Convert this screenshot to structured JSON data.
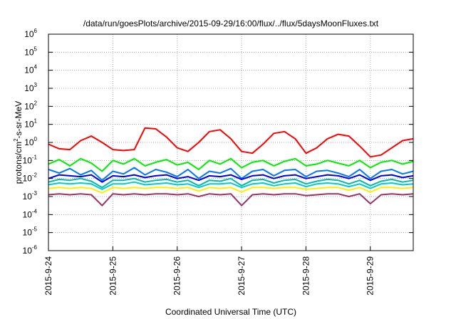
{
  "chart_data": {
    "type": "line",
    "title": "/data/run/goesPlots/archive/2015-09-29/16:00/flux/../flux/5daysMoonFluxes.txt",
    "xlabel": "Coordinated Universal Time (UTC)",
    "ylabel": "protons/cm2-s-sr-MeV",
    "ylabel_parts": {
      "pre": "protons/cm",
      "sup": "2",
      "post": "-s-sr-MeV"
    },
    "yscale": "log",
    "ylim": [
      1e-06,
      1000000.0
    ],
    "xlim_days_since_2015-9-24": [
      0,
      5.667
    ],
    "grid": true,
    "x_ticks": [
      {
        "value": 0,
        "label": "2015-9-24"
      },
      {
        "value": 1,
        "label": "2015-9-25"
      },
      {
        "value": 2,
        "label": "2015-9-26"
      },
      {
        "value": 3,
        "label": "2015-9-27"
      },
      {
        "value": 4,
        "label": "2015-9-28"
      },
      {
        "value": 5,
        "label": "2015-9-29"
      }
    ],
    "y_ticks": [
      {
        "exp": 6,
        "base": "10",
        "sup": "6"
      },
      {
        "exp": 5,
        "base": "10",
        "sup": "5"
      },
      {
        "exp": 4,
        "base": "10",
        "sup": "4"
      },
      {
        "exp": 3,
        "base": "10",
        "sup": "3"
      },
      {
        "exp": 2,
        "base": "10",
        "sup": "2"
      },
      {
        "exp": 1,
        "base": "10",
        "sup": "1"
      },
      {
        "exp": 0,
        "base": "10",
        "sup": "0"
      },
      {
        "exp": -1,
        "base": "10",
        "sup": "-1"
      },
      {
        "exp": -2,
        "base": "10",
        "sup": "-2"
      },
      {
        "exp": -3,
        "base": "10",
        "sup": "-3"
      },
      {
        "exp": -4,
        "base": "10",
        "sup": "-4"
      },
      {
        "exp": -5,
        "base": "10",
        "sup": "-5"
      },
      {
        "exp": -6,
        "base": "10",
        "sup": "-6"
      }
    ],
    "x_step_days": 0.1667,
    "series_log10": [
      {
        "color": "#ff0000",
        "values": [
          -0.1,
          -0.35,
          -0.4,
          0.1,
          0.35,
          0.0,
          -0.4,
          -0.45,
          -0.4,
          0.8,
          0.75,
          0.3,
          -0.3,
          -0.5,
          0.0,
          0.6,
          0.7,
          0.2,
          -0.5,
          -0.6,
          -0.1,
          0.5,
          0.6,
          0.2,
          -0.6,
          -0.3,
          0.2,
          0.45,
          0.35,
          -0.2,
          -0.8,
          -0.7,
          -0.3,
          0.1,
          0.2
        ]
      },
      {
        "color": "#00ee00",
        "values": [
          -1.2,
          -0.95,
          -1.3,
          -0.9,
          -1.15,
          -1.6,
          -1.0,
          -1.2,
          -0.9,
          -1.3,
          -1.1,
          -0.95,
          -1.25,
          -1.1,
          -1.5,
          -1.0,
          -1.2,
          -0.9,
          -1.4,
          -1.1,
          -1.0,
          -1.3,
          -1.05,
          -0.9,
          -1.3,
          -1.2,
          -1.0,
          -1.15,
          -1.3,
          -1.0,
          -1.4,
          -1.1,
          -1.0,
          -1.2,
          -1.05
        ]
      },
      {
        "color": "#0077ff",
        "values": [
          -1.5,
          -1.7,
          -1.45,
          -1.8,
          -1.55,
          -2.1,
          -1.6,
          -1.75,
          -1.4,
          -1.8,
          -1.5,
          -1.65,
          -1.9,
          -1.5,
          -2.0,
          -1.6,
          -1.7,
          -1.45,
          -2.0,
          -1.6,
          -1.5,
          -1.85,
          -1.55,
          -1.5,
          -1.9,
          -1.6,
          -1.55,
          -1.7,
          -1.9,
          -1.5,
          -2.0,
          -1.6,
          -1.5,
          -1.75,
          -1.6
        ]
      },
      {
        "color": "#0000ee",
        "values": [
          -2.0,
          -1.8,
          -1.85,
          -1.9,
          -1.8,
          -2.2,
          -1.85,
          -1.9,
          -1.8,
          -1.95,
          -1.85,
          -1.8,
          -2.0,
          -1.9,
          -2.1,
          -1.85,
          -1.9,
          -1.8,
          -2.05,
          -1.85,
          -1.8,
          -2.0,
          -1.85,
          -1.8,
          -2.0,
          -1.9,
          -1.8,
          -1.85,
          -2.0,
          -1.8,
          -2.1,
          -1.85,
          -1.8,
          -1.95,
          -1.85
        ]
      },
      {
        "color": "#00bbaa",
        "values": [
          -2.2,
          -2.05,
          -2.1,
          -2.0,
          -2.15,
          -2.5,
          -2.1,
          -2.1,
          -2.0,
          -2.2,
          -2.1,
          -2.05,
          -2.2,
          -2.1,
          -2.4,
          -2.1,
          -2.15,
          -2.0,
          -2.4,
          -2.1,
          -2.05,
          -2.25,
          -2.1,
          -2.05,
          -2.3,
          -2.15,
          -2.05,
          -2.1,
          -2.3,
          -2.1,
          -2.4,
          -2.15,
          -2.05,
          -2.2,
          -2.1
        ]
      },
      {
        "color": "#00cccc",
        "values": [
          -2.35,
          -2.25,
          -2.3,
          -2.25,
          -2.3,
          -2.6,
          -2.3,
          -2.3,
          -2.2,
          -2.35,
          -2.3,
          -2.25,
          -2.35,
          -2.3,
          -2.5,
          -2.3,
          -2.3,
          -2.25,
          -2.5,
          -2.3,
          -2.25,
          -2.4,
          -2.3,
          -2.25,
          -2.45,
          -2.3,
          -2.25,
          -2.3,
          -2.45,
          -2.3,
          -2.55,
          -2.3,
          -2.25,
          -2.35,
          -2.3
        ]
      },
      {
        "color": "#ffee00",
        "values": [
          -2.55,
          -2.5,
          -2.55,
          -2.5,
          -2.55,
          -2.8,
          -2.5,
          -2.55,
          -2.5,
          -2.55,
          -2.5,
          -2.5,
          -2.55,
          -2.5,
          -2.7,
          -2.5,
          -2.55,
          -2.5,
          -2.75,
          -2.5,
          -2.5,
          -2.55,
          -2.5,
          -2.5,
          -2.6,
          -2.55,
          -2.5,
          -2.5,
          -2.65,
          -2.5,
          -2.75,
          -2.5,
          -2.5,
          -2.55,
          -2.5
        ]
      },
      {
        "color": "#993366",
        "values": [
          -2.9,
          -2.85,
          -2.9,
          -2.85,
          -2.9,
          -3.5,
          -2.85,
          -2.9,
          -2.85,
          -2.9,
          -2.85,
          -2.85,
          -2.9,
          -2.85,
          -3.0,
          -2.85,
          -2.9,
          -2.85,
          -3.5,
          -2.9,
          -2.85,
          -2.9,
          -2.85,
          -2.85,
          -2.95,
          -2.9,
          -2.85,
          -2.85,
          -3.0,
          -2.85,
          -3.4,
          -2.9,
          -2.85,
          -2.9,
          -2.85
        ]
      }
    ]
  }
}
